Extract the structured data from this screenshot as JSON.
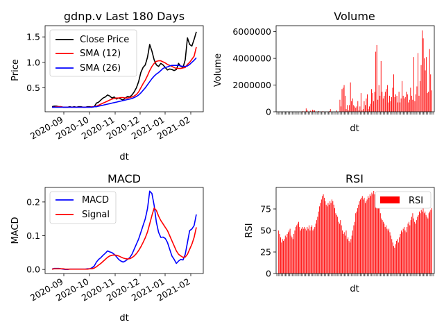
{
  "colors": {
    "price": "#000000",
    "sma12": "#ff0000",
    "sma26": "#0000ff",
    "volume": "#ff0000",
    "rsi": "#ff0000",
    "macd": "#0000ff",
    "signal": "#ff0000"
  },
  "chart_data": [
    {
      "type": "line",
      "id": "price",
      "title": "gdnp.v Last 180 Days",
      "xlabel": "dt",
      "ylabel": "Price",
      "x_ticks": [
        "2020-09",
        "2020-10",
        "2020-11",
        "2020-12",
        "2021-01",
        "2021-02"
      ],
      "y_ticks": [
        "0.5",
        "1.0",
        "1.5"
      ],
      "ylim": [
        0.03,
        1.72
      ],
      "legend": {
        "position": "top-left",
        "entries": [
          "Close Price",
          "SMA (12)",
          "SMA (26)"
        ]
      },
      "series": [
        {
          "name": "Close Price",
          "values": [
            0.13,
            0.14,
            0.14,
            0.13,
            0.13,
            0.12,
            0.12,
            0.12,
            0.13,
            0.12,
            0.13,
            0.12,
            0.13,
            0.13,
            0.12,
            0.12,
            0.13,
            0.13,
            0.12,
            0.13,
            0.2,
            0.22,
            0.26,
            0.3,
            0.32,
            0.36,
            0.34,
            0.3,
            0.32,
            0.28,
            0.3,
            0.28,
            0.26,
            0.3,
            0.33,
            0.32,
            0.36,
            0.42,
            0.5,
            0.62,
            0.8,
            0.9,
            0.95,
            1.1,
            1.35,
            1.22,
            1.05,
            0.95,
            0.92,
            0.98,
            0.95,
            0.9,
            0.85,
            0.87,
            0.86,
            0.84,
            0.86,
            0.98,
            0.92,
            0.9,
            1.05,
            1.48,
            1.35,
            1.32,
            1.45,
            1.6
          ]
        },
        {
          "name": "SMA (12)",
          "values": [
            0.12,
            0.12,
            0.13,
            0.13,
            0.13,
            0.12,
            0.12,
            0.12,
            0.12,
            0.12,
            0.12,
            0.12,
            0.12,
            0.12,
            0.12,
            0.12,
            0.12,
            0.12,
            0.13,
            0.13,
            0.14,
            0.16,
            0.18,
            0.2,
            0.22,
            0.24,
            0.26,
            0.28,
            0.29,
            0.3,
            0.3,
            0.31,
            0.31,
            0.3,
            0.3,
            0.31,
            0.32,
            0.34,
            0.37,
            0.42,
            0.5,
            0.58,
            0.65,
            0.74,
            0.84,
            0.92,
            0.98,
            1.02,
            1.03,
            1.03,
            1.01,
            0.99,
            0.96,
            0.94,
            0.92,
            0.9,
            0.88,
            0.88,
            0.88,
            0.89,
            0.9,
            0.96,
            1.0,
            1.06,
            1.12,
            1.3
          ]
        },
        {
          "name": "SMA (26)",
          "values": [
            0.12,
            0.12,
            0.12,
            0.12,
            0.12,
            0.12,
            0.12,
            0.12,
            0.12,
            0.12,
            0.12,
            0.12,
            0.12,
            0.12,
            0.12,
            0.12,
            0.12,
            0.12,
            0.12,
            0.13,
            0.13,
            0.14,
            0.15,
            0.16,
            0.17,
            0.18,
            0.19,
            0.2,
            0.21,
            0.22,
            0.23,
            0.24,
            0.25,
            0.26,
            0.27,
            0.28,
            0.29,
            0.31,
            0.33,
            0.36,
            0.4,
            0.45,
            0.5,
            0.56,
            0.62,
            0.68,
            0.73,
            0.77,
            0.8,
            0.84,
            0.88,
            0.9,
            0.91,
            0.93,
            0.94,
            0.94,
            0.94,
            0.94,
            0.93,
            0.92,
            0.92,
            0.93,
            0.96,
            1.0,
            1.04,
            1.09
          ]
        }
      ]
    },
    {
      "type": "bar",
      "id": "volume",
      "title": "Volume",
      "xlabel": "dt",
      "ylabel": "Volume",
      "y_ticks": [
        "0",
        "2000000",
        "4000000",
        "6000000"
      ],
      "ylim": [
        0,
        6450000
      ],
      "series": [
        {
          "name": "Volume",
          "values": [
            0,
            0,
            0,
            0,
            0,
            0,
            0,
            0,
            0,
            0,
            0,
            0,
            0,
            0,
            0,
            0,
            0,
            0,
            0,
            0,
            0,
            0,
            0,
            50000,
            20000,
            0,
            250000,
            120000,
            0,
            0,
            80000,
            0,
            150000,
            100000,
            100000,
            0,
            0,
            0,
            50000,
            0,
            0,
            0,
            50000,
            0,
            0,
            0,
            0,
            0,
            50000,
            200000,
            0,
            0,
            0,
            0,
            0,
            100000,
            0,
            0,
            900000,
            400000,
            1700000,
            1800000,
            2000000,
            1200000,
            200000,
            500000,
            100000,
            500000,
            2200000,
            800000,
            1000000,
            500000,
            400000,
            300000,
            400000,
            800000,
            100000,
            400000,
            1400000,
            100000,
            200000,
            800000,
            500000,
            1000000,
            1300000,
            200000,
            400000,
            600000,
            1700000,
            1400000,
            800000,
            1500000,
            4500000,
            5000000,
            900000,
            2000000,
            1200000,
            3800000,
            1500000,
            1000000,
            1200000,
            1500000,
            1700000,
            2000000,
            700000,
            1200000,
            800000,
            1100000,
            1800000,
            2800000,
            1100000,
            1300000,
            1200000,
            700000,
            1500000,
            700000,
            1000000,
            2300000,
            1200000,
            1000000,
            1100000,
            1500000,
            1300000,
            700000,
            900000,
            1800000,
            1200000,
            900000,
            4100000,
            800000,
            1300000,
            1900000,
            4400000,
            1200000,
            2300000,
            3500000,
            6100000,
            5500000,
            4000000,
            3100000,
            4100000,
            1400000,
            1500000,
            4700000,
            2800000,
            1600000
          ]
        }
      ]
    },
    {
      "type": "line",
      "id": "macd",
      "title": "MACD",
      "xlabel": "dt",
      "ylabel": "MACD",
      "x_ticks": [
        "2020-09",
        "2020-10",
        "2020-11",
        "2020-12",
        "2021-01",
        "2021-02"
      ],
      "y_ticks": [
        "0.0",
        "0.1",
        "0.2"
      ],
      "ylim": [
        -0.012,
        0.243
      ],
      "legend": {
        "position": "top-left",
        "entries": [
          "MACD",
          "Signal"
        ]
      },
      "series": [
        {
          "name": "MACD",
          "values": [
            0.001,
            0.003,
            0.003,
            0.003,
            0.002,
            0.001,
            0.0,
            0.0,
            0.001,
            0.001,
            0.001,
            0.001,
            0.001,
            0.001,
            0.001,
            0.001,
            0.002,
            0.002,
            0.005,
            0.01,
            0.022,
            0.03,
            0.035,
            0.042,
            0.048,
            0.055,
            0.052,
            0.05,
            0.045,
            0.038,
            0.03,
            0.025,
            0.022,
            0.025,
            0.03,
            0.035,
            0.045,
            0.06,
            0.075,
            0.09,
            0.11,
            0.13,
            0.15,
            0.18,
            0.232,
            0.225,
            0.19,
            0.14,
            0.11,
            0.095,
            0.096,
            0.092,
            0.08,
            0.06,
            0.04,
            0.03,
            0.018,
            0.025,
            0.03,
            0.028,
            0.045,
            0.08,
            0.115,
            0.12,
            0.13,
            0.163
          ]
        },
        {
          "name": "Signal",
          "values": [
            0.001,
            0.002,
            0.002,
            0.002,
            0.002,
            0.002,
            0.001,
            0.001,
            0.001,
            0.001,
            0.001,
            0.001,
            0.001,
            0.001,
            0.001,
            0.001,
            0.001,
            0.002,
            0.002,
            0.004,
            0.008,
            0.013,
            0.018,
            0.024,
            0.03,
            0.036,
            0.04,
            0.042,
            0.043,
            0.042,
            0.04,
            0.037,
            0.034,
            0.032,
            0.031,
            0.032,
            0.035,
            0.04,
            0.047,
            0.056,
            0.067,
            0.08,
            0.094,
            0.111,
            0.135,
            0.16,
            0.182,
            0.175,
            0.158,
            0.145,
            0.135,
            0.125,
            0.115,
            0.1,
            0.085,
            0.07,
            0.055,
            0.045,
            0.04,
            0.036,
            0.037,
            0.045,
            0.06,
            0.075,
            0.095,
            0.125
          ]
        }
      ]
    },
    {
      "type": "bar",
      "id": "rsi",
      "title": "RSI",
      "xlabel": "dt",
      "ylabel": "RSI",
      "y_ticks": [
        "0",
        "25",
        "50",
        "75"
      ],
      "ylim": [
        0,
        100
      ],
      "legend": {
        "position": "top-right",
        "entries": [
          "RSI"
        ]
      },
      "series": [
        {
          "name": "RSI",
          "values": [
            50,
            46,
            42,
            36,
            40,
            38,
            40,
            44,
            42,
            46,
            48,
            50,
            52,
            44,
            42,
            40,
            46,
            50,
            54,
            56,
            58,
            60,
            54,
            50,
            52,
            54,
            52,
            54,
            52,
            50,
            54,
            52,
            56,
            50,
            54,
            56,
            50,
            52,
            54,
            58,
            62,
            66,
            72,
            78,
            82,
            86,
            90,
            92,
            88,
            84,
            80,
            78,
            82,
            80,
            84,
            82,
            86,
            84,
            80,
            76,
            70,
            68,
            66,
            60,
            58,
            62,
            56,
            50,
            46,
            48,
            44,
            50,
            40,
            42,
            38,
            36,
            40,
            44,
            50,
            56,
            60,
            70,
            72,
            76,
            80,
            84,
            86,
            88,
            90,
            86,
            88,
            82,
            84,
            86,
            90,
            88,
            92,
            90,
            94,
            92,
            96,
            92,
            88,
            86,
            82,
            78,
            76,
            70,
            64,
            62,
            60,
            58,
            54,
            56,
            52,
            50,
            52,
            48,
            44,
            40,
            36,
            32,
            30,
            34,
            38,
            40,
            36,
            42,
            46,
            50,
            48,
            52,
            54,
            50,
            48,
            54,
            58,
            60,
            56,
            62,
            66,
            70,
            64,
            60,
            58,
            62,
            66,
            68,
            72,
            70,
            74,
            72,
            76,
            70,
            72,
            68,
            66,
            64,
            70,
            72,
            74,
            76
          ]
        }
      ]
    }
  ]
}
